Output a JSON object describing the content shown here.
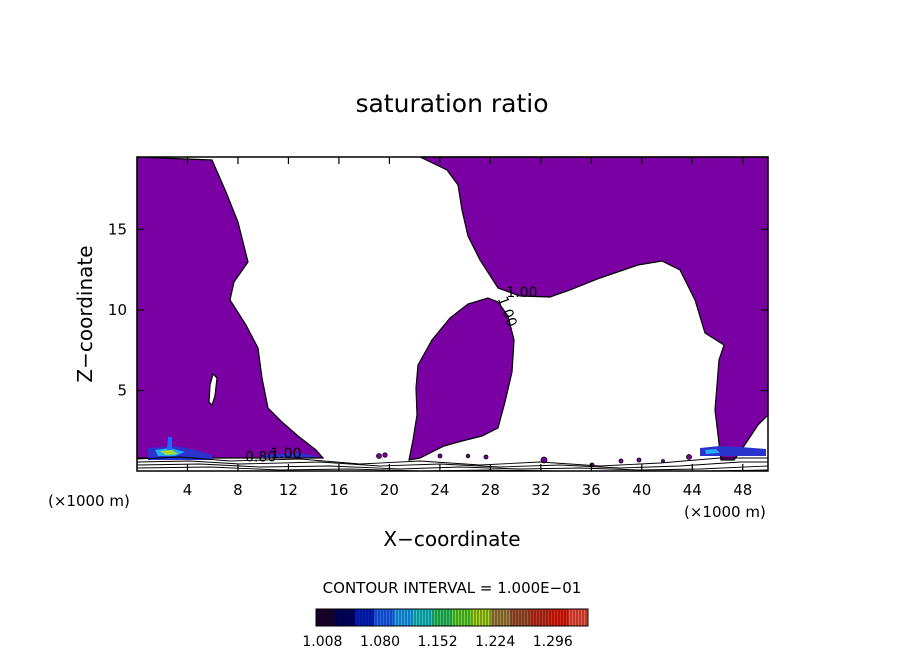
{
  "chart_data": {
    "type": "heatmap",
    "title": "saturation ratio",
    "xlabel": "X−coordinate",
    "ylabel": "Z−coordinate",
    "x_unit_left": "(×1000 m)",
    "x_unit_right": "(×1000 m)",
    "xlim": [
      0,
      50
    ],
    "ylim": [
      0,
      19.5
    ],
    "x_ticks": [
      "4",
      "8",
      "12",
      "16",
      "20",
      "24",
      "28",
      "32",
      "36",
      "40",
      "44",
      "48"
    ],
    "x_tick_values": [
      4,
      8,
      12,
      16,
      20,
      24,
      28,
      32,
      36,
      40,
      44,
      48
    ],
    "y_ticks": [
      "5",
      "10",
      "15"
    ],
    "y_tick_values": [
      5,
      10,
      15
    ],
    "contour_labels": [
      {
        "text": "1.00",
        "x": 30.5,
        "y": 10.8
      },
      {
        "text": "1.00",
        "x": 29.0,
        "y": 9.8
      },
      {
        "text": "0.80",
        "x": 9.8,
        "y": 0.6
      },
      {
        "text": "1.00",
        "x": 11.8,
        "y": 0.8
      }
    ],
    "fill_color": "#7b00a4",
    "contour_interval": "CONTOUR INTERVAL = 1.000E−01",
    "colorbar": {
      "min": 1.0,
      "max": 1.34,
      "tick_labels": [
        "1.008",
        "1.080",
        "1.152",
        "1.224",
        "1.296"
      ],
      "tick_values": [
        1.008,
        1.08,
        1.152,
        1.224,
        1.296
      ],
      "colors": [
        "#1a0033",
        "#000066",
        "#0022cc",
        "#2266ff",
        "#22aaff",
        "#22cccc",
        "#33cc66",
        "#66dd33",
        "#aadd22",
        "#aa8844",
        "#aa5533",
        "#cc3322",
        "#ee2211",
        "#ff5544"
      ]
    }
  }
}
